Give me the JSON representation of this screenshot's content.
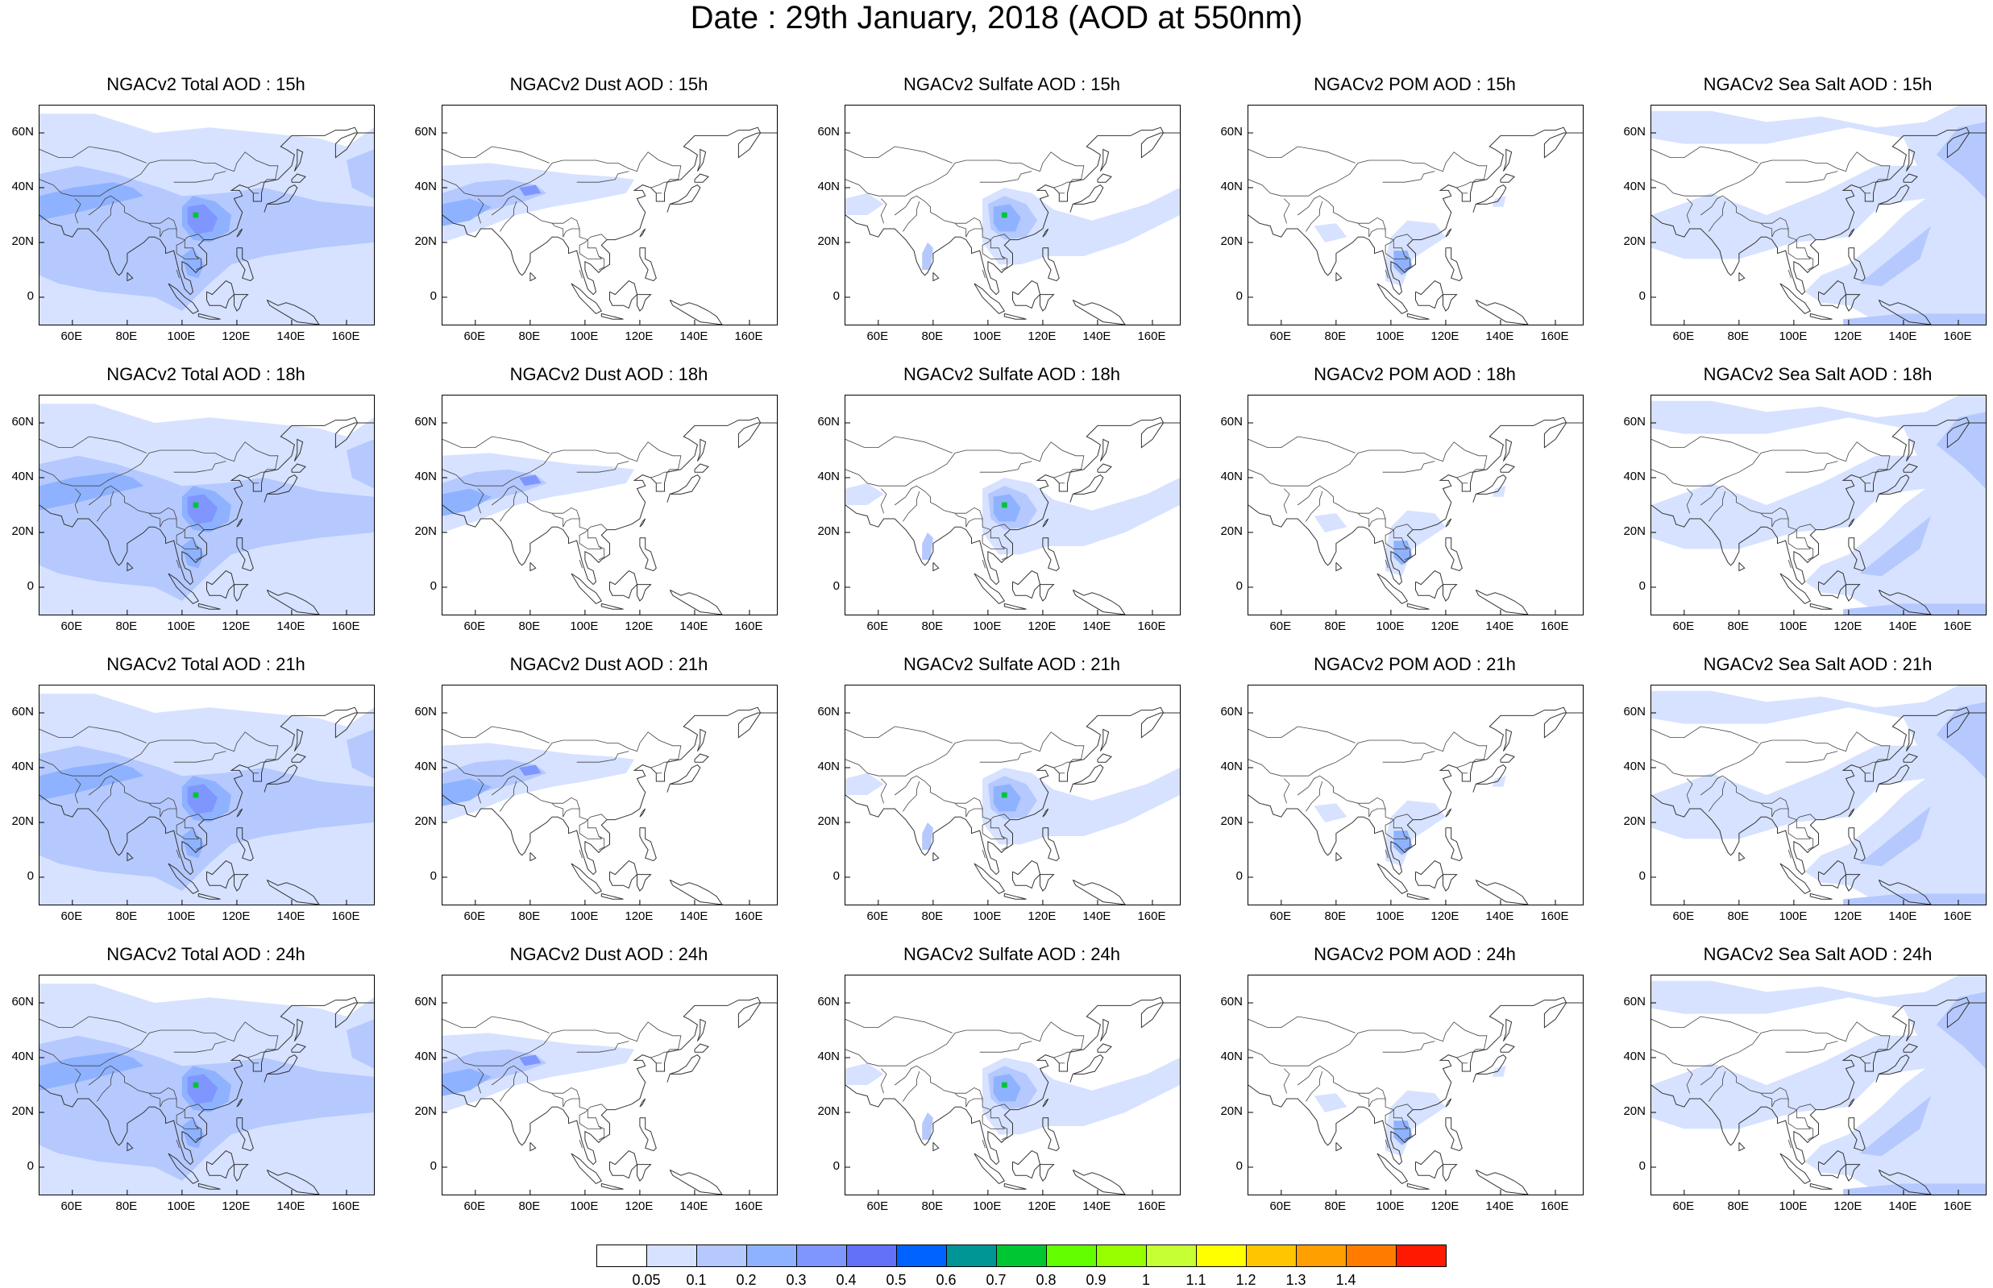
{
  "title": "Date : 29th January, 2018 (AOD at 550nm)",
  "lat_ticks": [
    "60N",
    "40N",
    "20N",
    "0"
  ],
  "lon_ticks": [
    "60E",
    "80E",
    "100E",
    "120E",
    "140E",
    "160E"
  ],
  "map_extent": {
    "lon": [
      48,
      170
    ],
    "lat": [
      -10,
      70
    ]
  },
  "tick_values": {
    "lat": [
      60,
      40,
      20,
      0
    ],
    "lon": [
      60,
      80,
      100,
      120,
      140,
      160
    ]
  },
  "species": [
    "total",
    "dust",
    "sulfate",
    "pom",
    "seasalt"
  ],
  "hours": [
    "15h",
    "18h",
    "21h",
    "24h"
  ],
  "panels": [
    [
      {
        "title": "NGACv2 Total AOD : 15h",
        "species": "total"
      },
      {
        "title": "NGACv2 Dust AOD : 15h",
        "species": "dust"
      },
      {
        "title": "NGACv2 Sulfate AOD : 15h",
        "species": "sulfate"
      },
      {
        "title": "NGACv2 POM AOD : 15h",
        "species": "pom"
      },
      {
        "title": "NGACv2 Sea Salt AOD : 15h",
        "species": "seasalt"
      }
    ],
    [
      {
        "title": "NGACv2 Total AOD : 18h",
        "species": "total"
      },
      {
        "title": "NGACv2 Dust AOD : 18h",
        "species": "dust"
      },
      {
        "title": "NGACv2 Sulfate AOD : 18h",
        "species": "sulfate"
      },
      {
        "title": "NGACv2 POM AOD : 18h",
        "species": "pom"
      },
      {
        "title": "NGACv2 Sea Salt AOD : 18h",
        "species": "seasalt"
      }
    ],
    [
      {
        "title": "NGACv2 Total AOD : 21h",
        "species": "total"
      },
      {
        "title": "NGACv2 Dust AOD : 21h",
        "species": "dust"
      },
      {
        "title": "NGACv2 Sulfate AOD : 21h",
        "species": "sulfate"
      },
      {
        "title": "NGACv2 POM AOD : 21h",
        "species": "pom"
      },
      {
        "title": "NGACv2 Sea Salt AOD : 21h",
        "species": "seasalt"
      }
    ],
    [
      {
        "title": "NGACv2 Total AOD : 24h",
        "species": "total"
      },
      {
        "title": "NGACv2 Dust AOD : 24h",
        "species": "dust"
      },
      {
        "title": "NGACv2 Sulfate AOD : 24h",
        "species": "sulfate"
      },
      {
        "title": "NGACv2 POM AOD : 24h",
        "species": "pom"
      },
      {
        "title": "NGACv2 Sea Salt  AOD : 24h",
        "species": "seasalt"
      }
    ]
  ],
  "colorbar": {
    "labels": [
      "0.05",
      "0.1",
      "0.2",
      "0.3",
      "0.4",
      "0.5",
      "0.6",
      "0.7",
      "0.8",
      "0.9",
      "1",
      "1.1",
      "1.2",
      "1.3",
      "1.4"
    ],
    "colors": [
      "#ffffff",
      "#d6e2ff",
      "#b5c9ff",
      "#8eb2ff",
      "#7f96ff",
      "#6370f8",
      "#0063ff",
      "#009696",
      "#00c633",
      "#63ff00",
      "#96ff00",
      "#c6ff33",
      "#ffff00",
      "#ffc600",
      "#ffa000",
      "#ff7c00",
      "#ff1900"
    ]
  },
  "plume_colors": {
    "light": "#d6e2ff",
    "mid": "#b5c9ff",
    "strong": "#8eb2ff",
    "deep": "#7f96ff",
    "core": "#6370f8",
    "hot": "#00c633"
  }
}
